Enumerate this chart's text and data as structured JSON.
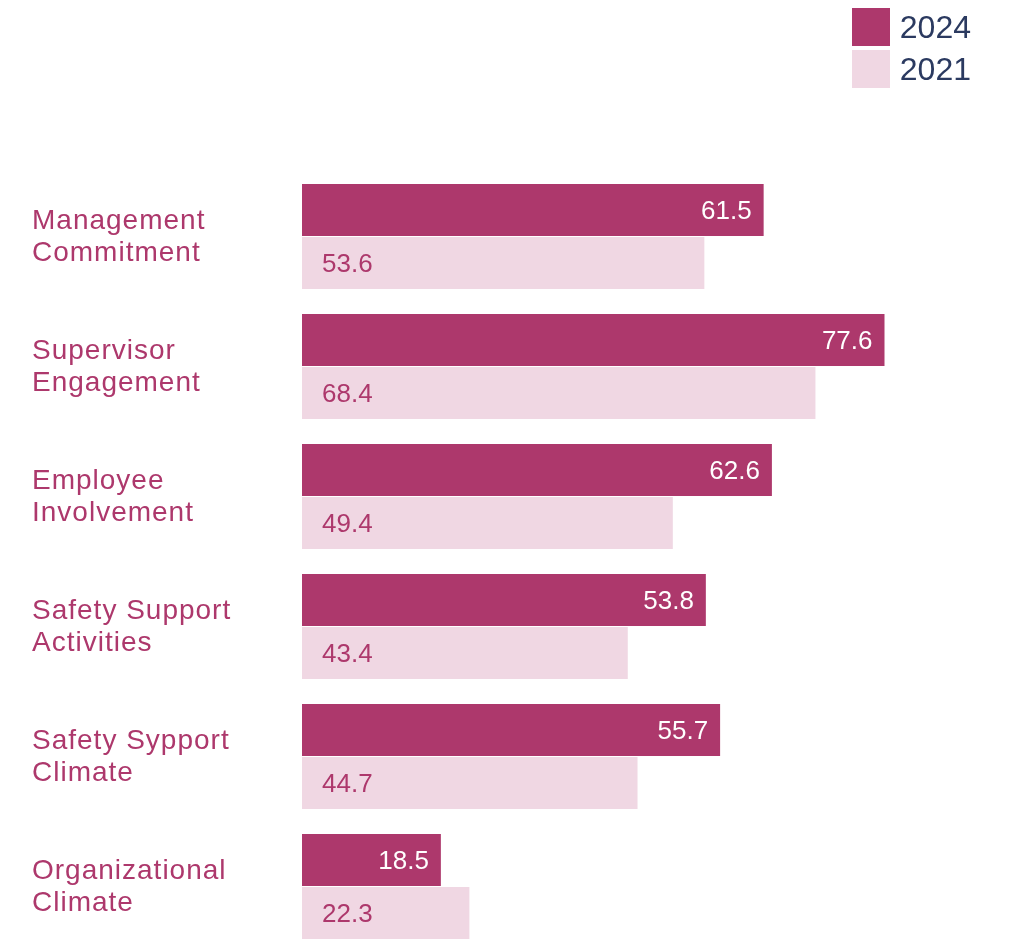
{
  "chart_data": {
    "type": "bar",
    "orientation": "horizontal",
    "categories": [
      "Management Commitment",
      "Supervisor Engagement",
      "Employee Involvement",
      "Safety Support Activities",
      "Safety Sypport Climate",
      "Organizational Climate"
    ],
    "series": [
      {
        "name": "2024",
        "color": "#ad386c",
        "values": [
          61.5,
          77.6,
          62.6,
          53.8,
          55.7,
          18.5
        ]
      },
      {
        "name": "2021",
        "color": "#f0d7e3",
        "values": [
          53.6,
          68.4,
          49.4,
          43.4,
          44.7,
          22.3
        ]
      }
    ],
    "data_labels": true,
    "legend": "top right",
    "grid": false
  }
}
